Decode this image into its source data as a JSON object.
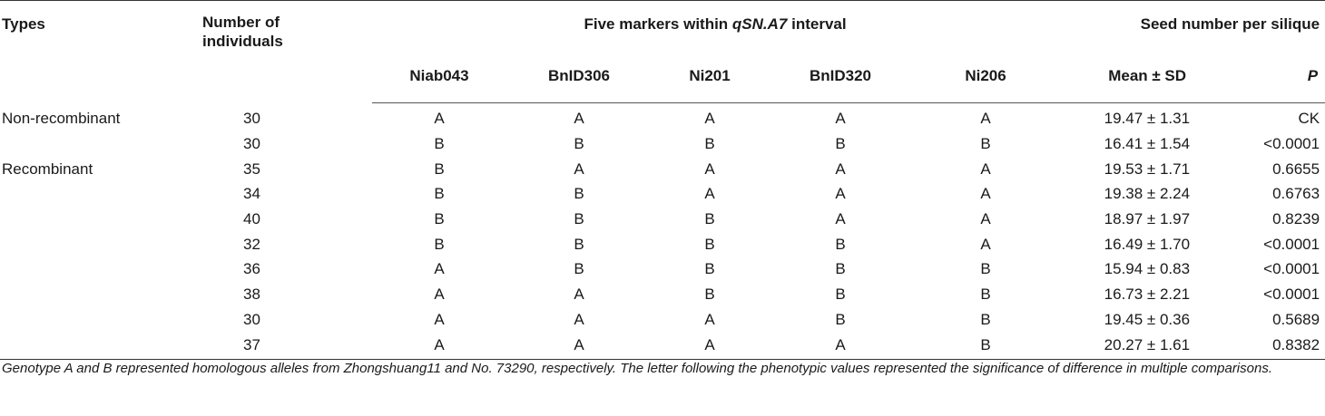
{
  "table": {
    "headers": {
      "types": "Types",
      "number_line1": "Number of",
      "number_line2": "individuals",
      "markers_group_prefix": "Five markers within ",
      "markers_group_italic": "qSN.A7",
      "markers_group_suffix": " interval",
      "seed_group": "Seed number per silique",
      "markers": [
        "Niab043",
        "BnID306",
        "Ni201",
        "BnID320",
        "Ni206"
      ],
      "mean_sd": "Mean ± SD",
      "p": "P"
    },
    "rows": [
      {
        "type": "Non-recombinant",
        "n": "30",
        "m": [
          "A",
          "A",
          "A",
          "A",
          "A"
        ],
        "mean": "19.47 ± 1.31",
        "p": "CK"
      },
      {
        "type": "",
        "n": "30",
        "m": [
          "B",
          "B",
          "B",
          "B",
          "B"
        ],
        "mean": "16.41 ± 1.54",
        "p": "<0.0001"
      },
      {
        "type": "Recombinant",
        "n": "35",
        "m": [
          "B",
          "A",
          "A",
          "A",
          "A"
        ],
        "mean": "19.53 ± 1.71",
        "p": "0.6655"
      },
      {
        "type": "",
        "n": "34",
        "m": [
          "B",
          "B",
          "A",
          "A",
          "A"
        ],
        "mean": "19.38 ± 2.24",
        "p": "0.6763"
      },
      {
        "type": "",
        "n": "40",
        "m": [
          "B",
          "B",
          "B",
          "A",
          "A"
        ],
        "mean": "18.97 ± 1.97",
        "p": "0.8239"
      },
      {
        "type": "",
        "n": "32",
        "m": [
          "B",
          "B",
          "B",
          "B",
          "A"
        ],
        "mean": "16.49 ± 1.70",
        "p": "<0.0001"
      },
      {
        "type": "",
        "n": "36",
        "m": [
          "A",
          "B",
          "B",
          "B",
          "B"
        ],
        "mean": "15.94 ± 0.83",
        "p": "<0.0001"
      },
      {
        "type": "",
        "n": "38",
        "m": [
          "A",
          "A",
          "B",
          "B",
          "B"
        ],
        "mean": "16.73 ± 2.21",
        "p": "<0.0001"
      },
      {
        "type": "",
        "n": "30",
        "m": [
          "A",
          "A",
          "A",
          "B",
          "B"
        ],
        "mean": "19.45 ± 0.36",
        "p": "0.5689"
      },
      {
        "type": "",
        "n": "37",
        "m": [
          "A",
          "A",
          "A",
          "A",
          "B"
        ],
        "mean": "20.27 ± 1.61",
        "p": "0.8382"
      }
    ]
  },
  "footnote": "Genotype A and B represented homologous alleles from Zhongshuang11 and No. 73290, respectively. The letter following the phenotypic values represented the significance of difference in multiple comparisons."
}
